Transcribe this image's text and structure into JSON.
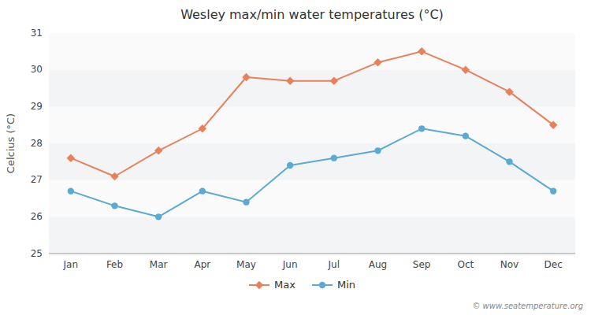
{
  "chart_data": {
    "type": "line",
    "title": "Wesley max/min water temperatures (°C)",
    "y_label": "Celcius (°C)",
    "categories": [
      "Jan",
      "Feb",
      "Mar",
      "Apr",
      "May",
      "Jun",
      "Jul",
      "Aug",
      "Sep",
      "Oct",
      "Nov",
      "Dec"
    ],
    "series": [
      {
        "name": "Max",
        "color": "#e8815a",
        "marker": "diamond",
        "values": [
          27.6,
          27.1,
          27.8,
          28.4,
          29.8,
          29.7,
          29.7,
          30.2,
          30.5,
          30.0,
          29.4,
          28.5
        ]
      },
      {
        "name": "Min",
        "color": "#5aaad4",
        "marker": "circle",
        "values": [
          26.7,
          26.3,
          26.0,
          26.7,
          26.4,
          27.4,
          27.6,
          27.8,
          28.4,
          28.2,
          27.5,
          26.7
        ]
      }
    ],
    "ylim": [
      25,
      31
    ],
    "yticks": [
      25,
      26,
      27,
      28,
      29,
      30,
      31
    ],
    "grid": false,
    "legend": "bottom",
    "annotations": [
      "© www.seatemperature.org"
    ]
  }
}
